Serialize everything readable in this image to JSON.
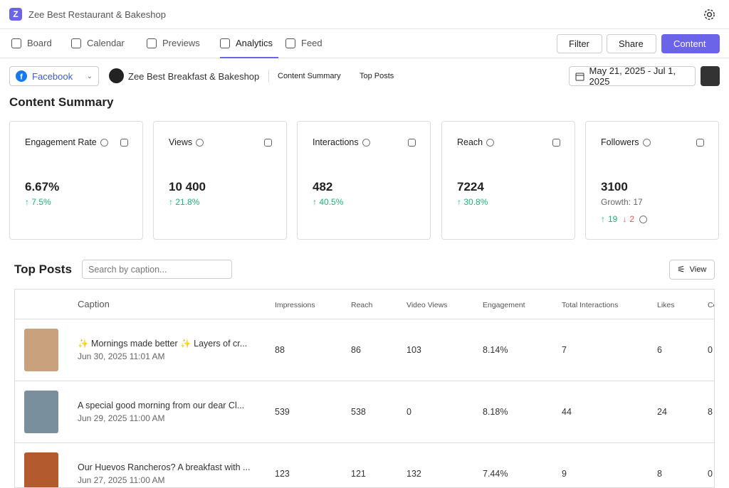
{
  "header": {
    "brand_initial": "Z",
    "title": "Zee Best Restaurant & Bakeshop"
  },
  "nav": {
    "tabs": [
      "Board",
      "Calendar",
      "Previews",
      "Analytics",
      "Feed"
    ],
    "active": 3,
    "actions": [
      "Filter",
      "Share",
      "Content"
    ]
  },
  "toolbar": {
    "platform": "Facebook",
    "account": "Zee Best Breakfast & Bakeshop",
    "links": [
      "Content Summary",
      "Top Posts"
    ],
    "date_range": "May 21, 2025 - Jul 1, 2025"
  },
  "summary": {
    "title": "Content Summary",
    "cards": [
      {
        "label": "Engagement Rate",
        "value": "6.67%",
        "change": "7.5%"
      },
      {
        "label": "Views",
        "value": "10 400",
        "change": "21.8%"
      },
      {
        "label": "Interactions",
        "value": "482",
        "change": "40.5%"
      },
      {
        "label": "Reach",
        "value": "7224",
        "change": "30.8%"
      },
      {
        "label": "Followers",
        "value": "3100",
        "growth": "Growth: 17",
        "up": "19",
        "down": "2"
      }
    ]
  },
  "top_posts": {
    "title": "Top Posts",
    "search_placeholder": "Search by caption...",
    "view": "View",
    "columns": [
      "Caption",
      "Impressions",
      "Reach",
      "Video Views",
      "Engagement",
      "Total Interactions",
      "Likes",
      "Comments"
    ],
    "rows": [
      {
        "caption": "✨ Mornings made better ✨ Layers of cr...",
        "date": "Jun 30, 2025 11:01 AM",
        "cells": [
          "88",
          "86",
          "103",
          "8.14%",
          "7",
          "6",
          "0"
        ]
      },
      {
        "caption": "A special good morning from our dear Cl...",
        "date": "Jun 29, 2025 11:00 AM",
        "cells": [
          "539",
          "538",
          "0",
          "8.18%",
          "44",
          "24",
          "8"
        ]
      },
      {
        "caption": "Our Huevos Rancheros? A breakfast with ...",
        "date": "Jun 27, 2025 11:00 AM",
        "cells": [
          "123",
          "121",
          "132",
          "7.44%",
          "9",
          "8",
          "0"
        ]
      }
    ]
  }
}
